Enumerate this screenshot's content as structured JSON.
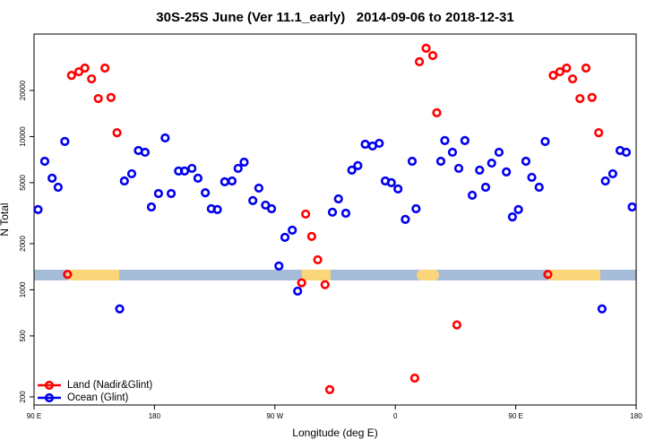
{
  "chart_data": {
    "type": "scatter",
    "title": "30S-25S June (Ver 11.1_early)   2014-09-06 to 2018-12-31",
    "x_label": "Longitude (deg E)",
    "y_label": "N Total",
    "ylog": true,
    "legend": "bottom left",
    "xlim": [
      90,
      540
    ],
    "ylim": [
      177,
      46700
    ],
    "xticks": [
      {
        "value": 90,
        "label": "90 E"
      },
      180,
      {
        "value": 270,
        "label": "90 W"
      },
      {
        "value": 360,
        "label": "0"
      },
      {
        "value": 450,
        "label": "90 E"
      },
      {
        "value": 540,
        "label": "180"
      }
    ],
    "yticks": [
      200,
      500,
      1000,
      2000,
      5000,
      10000,
      20000
    ],
    "series": [
      {
        "name": "Land (Nadir&Glint)",
        "color": "#ff0000",
        "x": [
          115,
          118,
          123.5,
          128,
          133,
          138,
          143,
          147.5,
          152,
          290,
          293,
          297.5,
          302,
          307.5,
          311,
          374.5,
          378,
          383,
          388,
          391,
          406,
          474,
          478,
          483,
          488,
          492.5,
          498,
          502.5,
          507,
          512
        ],
        "values": [
          1260,
          25100,
          26500,
          28000,
          23800,
          17700,
          28000,
          18000,
          10600,
          1110,
          3120,
          2230,
          1570,
          1080,
          223,
          265,
          30800,
          37700,
          33800,
          14300,
          590,
          1260,
          25100,
          26500,
          28000,
          23800,
          17700,
          28000,
          18000,
          10600
        ]
      },
      {
        "name": "Ocean (Glint)",
        "color": "#0000ee",
        "x": [
          93,
          98,
          103.5,
          108,
          113,
          154,
          157.5,
          163,
          168,
          173,
          177.7,
          183,
          188,
          192.5,
          198,
          202.5,
          208,
          212.5,
          218,
          222.5,
          227,
          232.5,
          238,
          242.5,
          247,
          253.5,
          258,
          263,
          267.5,
          273,
          277.5,
          283,
          287,
          313,
          317.5,
          323,
          327.5,
          332,
          337.5,
          343,
          348,
          352.5,
          357,
          362,
          367.5,
          372.6,
          375.5,
          394,
          397,
          402.7,
          407.4,
          412,
          417.5,
          423,
          427.5,
          432,
          437.5,
          443,
          447.5,
          452,
          457.6,
          462,
          467.5,
          472,
          514.5,
          517,
          522.5,
          528,
          532.6,
          537
        ],
        "values": [
          3340,
          6900,
          5350,
          4670,
          9290,
          750,
          5130,
          5720,
          8110,
          7900,
          3470,
          4250,
          9800,
          4250,
          5960,
          5960,
          6200,
          5350,
          4300,
          3380,
          3340,
          5070,
          5130,
          6200,
          6810,
          3820,
          4610,
          3570,
          3380,
          1430,
          2200,
          2450,
          980,
          3210,
          3920,
          3160,
          6040,
          6460,
          8910,
          8680,
          9040,
          5130,
          5000,
          4550,
          2880,
          6900,
          3380,
          6900,
          9420,
          7900,
          6200,
          9420,
          4140,
          6040,
          4670,
          6710,
          7900,
          5880,
          2990,
          3340,
          6900,
          5420,
          4670,
          9290,
          750,
          5130,
          5720,
          8110,
          7900,
          3470
        ]
      }
    ]
  }
}
